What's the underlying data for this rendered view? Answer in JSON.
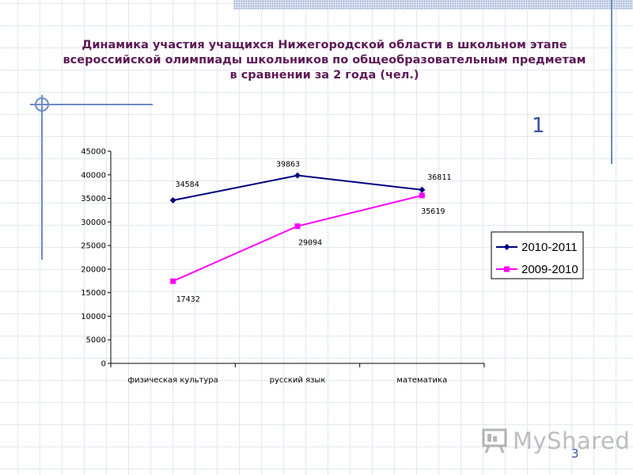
{
  "slide": {
    "title": "Динамика участия учащихся Нижегородской области в школьном этапе\nвсероссийской олимпиады школьников по общеобразовательным предметам\nв сравнении за 2 года (чел.)",
    "marker": "1",
    "page_number": "3",
    "watermark": "MyShared"
  },
  "chart_data": {
    "type": "line",
    "title": "",
    "xlabel": "",
    "ylabel": "",
    "categories": [
      "физическая культура",
      "русский язык",
      "математика"
    ],
    "ylim": [
      0,
      45000
    ],
    "yticks": [
      0,
      5000,
      10000,
      15000,
      20000,
      25000,
      30000,
      35000,
      40000,
      45000
    ],
    "series": [
      {
        "name": "2010-2011",
        "values": [
          34584,
          39863,
          36811
        ],
        "color": "#000080",
        "marker": "diamond"
      },
      {
        "name": "2009-2010",
        "values": [
          17432,
          29094,
          35619
        ],
        "color": "#ff00ff",
        "marker": "square"
      }
    ],
    "legend": "right",
    "grid": false
  }
}
